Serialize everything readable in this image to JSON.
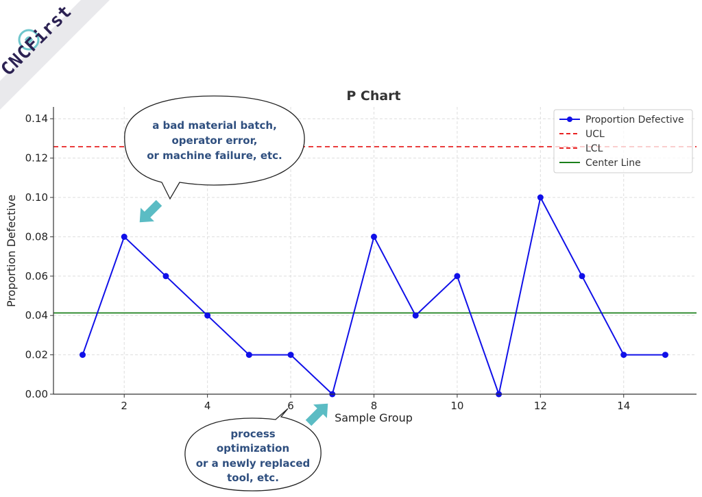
{
  "brand": {
    "name": "CNCFirst"
  },
  "annotations": {
    "top_bubble": [
      "a bad material batch,",
      "operator error,",
      "or machine failure, etc."
    ],
    "bottom_bubble": [
      "process",
      "optimization",
      "or a newly replaced",
      "tool, etc."
    ]
  },
  "chart_data": {
    "type": "line",
    "title": "P Chart",
    "xlabel": "Sample Group",
    "ylabel": "Proportion Defective",
    "x": [
      1,
      2,
      3,
      4,
      5,
      6,
      7,
      8,
      9,
      10,
      11,
      12,
      13,
      14,
      15
    ],
    "series": [
      {
        "name": "Proportion Defective",
        "color": "#1010e8",
        "values": [
          0.02,
          0.08,
          0.06,
          0.04,
          0.02,
          0.02,
          0.0,
          0.08,
          0.04,
          0.06,
          0.0,
          0.1,
          0.06,
          0.02,
          0.02
        ]
      }
    ],
    "lines": [
      {
        "name": "UCL",
        "value": 0.1258,
        "color": "#e82020",
        "style": "dashed"
      },
      {
        "name": "LCL",
        "value": null,
        "color": "#e82020",
        "style": "dashed"
      },
      {
        "name": "Center Line",
        "value": 0.0413,
        "color": "#1a7f1a",
        "style": "solid"
      }
    ],
    "xticks": [
      2,
      4,
      6,
      8,
      10,
      12,
      14
    ],
    "yticks": [
      0.0,
      0.02,
      0.04,
      0.06,
      0.08,
      0.1,
      0.12,
      0.14
    ],
    "xlim": [
      0.3,
      15.75
    ],
    "ylim": [
      0,
      0.146
    ],
    "grid": true,
    "legend_position": "top-right"
  }
}
